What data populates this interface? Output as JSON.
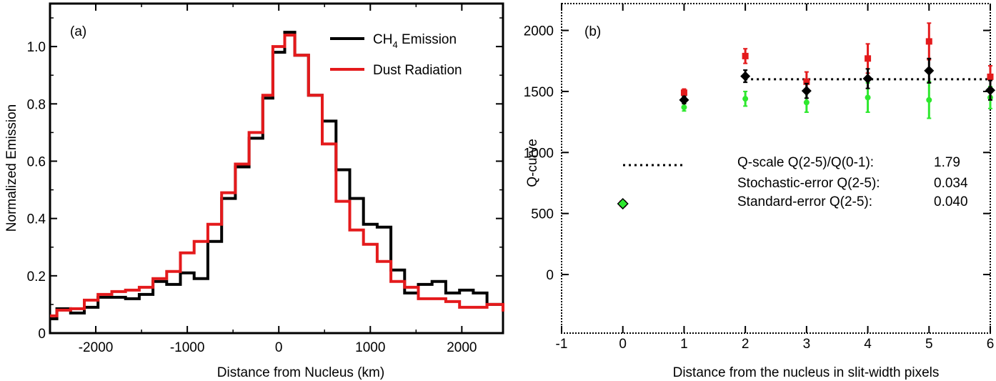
{
  "chart_data": [
    {
      "type": "line",
      "panel_label": "(a)",
      "xlabel": "Distance from Nucleus (km)",
      "ylabel": "Normalized Emission",
      "xlim": [
        -2500,
        2450
      ],
      "ylim": [
        0,
        1.15
      ],
      "xticks": [
        -2000,
        -1000,
        0,
        1000,
        2000
      ],
      "xtick_labels": [
        "-2000",
        "-1000",
        "0",
        "1000",
        "2000"
      ],
      "yticks": [
        0,
        0.2,
        0.4,
        0.6,
        0.8,
        1.0
      ],
      "ytick_labels": [
        "0",
        "0.2",
        "0.4",
        "0.6",
        "0.8",
        "1.0"
      ],
      "legend": {
        "placement": "top-right",
        "entries": [
          {
            "name_main": "CH",
            "name_sub": "4",
            "name_rest": " Emission",
            "color": "#000000"
          },
          {
            "name_main": "Dust Radiation",
            "name_sub": "",
            "name_rest": "",
            "color": "#e41a1c"
          }
        ]
      },
      "bin_edges": [
        -2500,
        -2425,
        -2275,
        -2125,
        -1975,
        -1825,
        -1675,
        -1525,
        -1375,
        -1225,
        -1075,
        -925,
        -775,
        -625,
        -475,
        -325,
        -175,
        -65,
        65,
        175,
        325,
        475,
        625,
        775,
        925,
        1075,
        1225,
        1375,
        1525,
        1675,
        1825,
        1975,
        2125,
        2275,
        2450
      ],
      "series": [
        {
          "name": "CH4 Emission",
          "color": "#000000",
          "values": [
            0.05,
            0.085,
            0.07,
            0.09,
            0.125,
            0.125,
            0.12,
            0.135,
            0.18,
            0.17,
            0.21,
            0.19,
            0.32,
            0.47,
            0.58,
            0.68,
            0.82,
            0.98,
            1.05,
            0.97,
            0.83,
            0.74,
            0.57,
            0.47,
            0.38,
            0.37,
            0.22,
            0.14,
            0.17,
            0.18,
            0.14,
            0.15,
            0.14,
            0.1,
            0.09
          ]
        },
        {
          "name": "Dust Radiation",
          "color": "#e41a1c",
          "values": [
            0.06,
            0.08,
            0.085,
            0.115,
            0.135,
            0.145,
            0.15,
            0.16,
            0.19,
            0.215,
            0.28,
            0.32,
            0.38,
            0.49,
            0.59,
            0.7,
            0.83,
            1.0,
            1.04,
            0.97,
            0.83,
            0.66,
            0.46,
            0.36,
            0.31,
            0.25,
            0.18,
            0.16,
            0.12,
            0.12,
            0.11,
            0.09,
            0.09,
            0.1,
            0.075
          ]
        }
      ]
    },
    {
      "type": "scatter",
      "panel_label": "(b)",
      "xlabel": "Distance from the nucleus in slit-width pixels",
      "ylabel": "Q-curve",
      "xlim": [
        -1,
        6
      ],
      "ylim": [
        -480,
        2220
      ],
      "xticks": [
        -1,
        0,
        1,
        2,
        3,
        4,
        5,
        6
      ],
      "xtick_labels": [
        "-1",
        "0",
        "1",
        "2",
        "3",
        "4",
        "5",
        "6"
      ],
      "yticks": [
        0,
        500,
        1000,
        1500,
        2000
      ],
      "ytick_labels": [
        "0",
        "500",
        "1000",
        "1500",
        "2000"
      ],
      "series": [
        {
          "name": "red",
          "color": "#e41a1c",
          "marker": "square",
          "points": [
            {
              "x": 0,
              "y": 580,
              "err": 0
            },
            {
              "x": 1,
              "y": 1490,
              "err": 30
            },
            {
              "x": 2,
              "y": 1790,
              "err": 60
            },
            {
              "x": 3,
              "y": 1580,
              "err": 80
            },
            {
              "x": 4,
              "y": 1770,
              "err": 120
            },
            {
              "x": 5,
              "y": 1910,
              "err": 150
            },
            {
              "x": 6,
              "y": 1620,
              "err": 90
            }
          ]
        },
        {
          "name": "green",
          "color": "#2ee82e",
          "marker": "circle",
          "points": [
            {
              "x": 0,
              "y": 580,
              "err": 0
            },
            {
              "x": 1,
              "y": 1370,
              "err": 30
            },
            {
              "x": 2,
              "y": 1440,
              "err": 60
            },
            {
              "x": 3,
              "y": 1410,
              "err": 80
            },
            {
              "x": 4,
              "y": 1450,
              "err": 120
            },
            {
              "x": 5,
              "y": 1430,
              "err": 150
            },
            {
              "x": 6,
              "y": 1450,
              "err": 90
            }
          ]
        },
        {
          "name": "black",
          "color": "#000000",
          "marker": "diamond",
          "points": [
            {
              "x": 0,
              "y": 580,
              "err": 0
            },
            {
              "x": 1,
              "y": 1430,
              "err": 30
            },
            {
              "x": 2,
              "y": 1625,
              "err": 50
            },
            {
              "x": 3,
              "y": 1505,
              "err": 60
            },
            {
              "x": 4,
              "y": 1605,
              "err": 80
            },
            {
              "x": 5,
              "y": 1670,
              "err": 100
            },
            {
              "x": 6,
              "y": 1510,
              "err": 80
            }
          ]
        }
      ],
      "hline": {
        "y": 1600,
        "x_from": 2,
        "x_to": 6,
        "style": "dotted"
      },
      "stats": {
        "legend_line_style": "dotted",
        "rows": [
          {
            "label": "Q-scale Q(2-5)/Q(0-1):",
            "value": "1.79"
          },
          {
            "label": "Stochastic-error Q(2-5):",
            "value": "0.034"
          },
          {
            "label": "Standard-error Q(2-5):",
            "value": "0.040"
          }
        ]
      }
    }
  ]
}
